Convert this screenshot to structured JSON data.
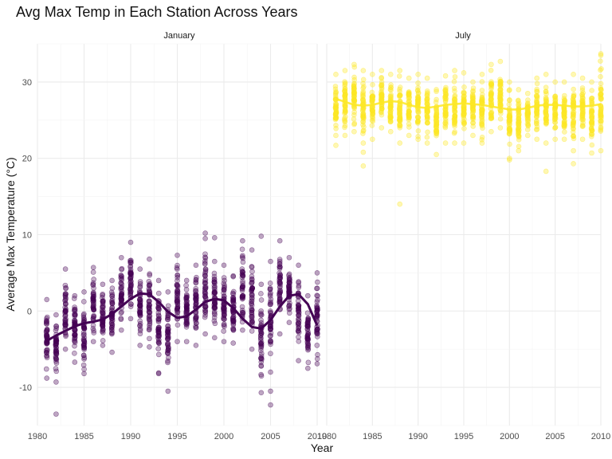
{
  "chart_data": {
    "type": "scatter",
    "title": "Avg Max Temp in Each Station Across Years",
    "xlabel": "Year",
    "ylabel": "Average Max Temperature (°C)",
    "xlim": [
      1980,
      2010
    ],
    "ylim": [
      -15,
      35
    ],
    "x_ticks": [
      1980,
      1985,
      1990,
      1995,
      2000,
      2005,
      2010
    ],
    "y_ticks": [
      -10,
      0,
      10,
      20,
      30
    ],
    "grid": true,
    "legend": "none",
    "facets": [
      {
        "label": "January",
        "color": "#440154",
        "smooth": [
          [
            1981,
            -3.9
          ],
          [
            1982,
            -3.2
          ],
          [
            1983,
            -2.6
          ],
          [
            1984,
            -2.0
          ],
          [
            1985,
            -1.6
          ],
          [
            1986,
            -1.4
          ],
          [
            1987,
            -1.1
          ],
          [
            1988,
            -0.4
          ],
          [
            1989,
            0.6
          ],
          [
            1990,
            1.6
          ],
          [
            1991,
            2.3
          ],
          [
            1992,
            2.2
          ],
          [
            1993,
            1.2
          ],
          [
            1994,
            -0.1
          ],
          [
            1995,
            -0.9
          ],
          [
            1996,
            -0.7
          ],
          [
            1997,
            0.2
          ],
          [
            1998,
            1.2
          ],
          [
            1999,
            1.6
          ],
          [
            2000,
            1.4
          ],
          [
            2001,
            0.4
          ],
          [
            2002,
            -1.0
          ],
          [
            2003,
            -2.1
          ],
          [
            2004,
            -2.3
          ],
          [
            2005,
            -1.2
          ],
          [
            2006,
            0.6
          ],
          [
            2007,
            2.0
          ],
          [
            2008,
            2.2
          ],
          [
            2009,
            0.9
          ],
          [
            2010,
            -1.9
          ]
        ],
        "year_ranges": [
          [
            1981,
            -8.8,
            1.5
          ],
          [
            1982,
            -9.3,
            -0.5
          ],
          [
            1983,
            -5.0,
            5.5
          ],
          [
            1984,
            -6.7,
            2.0
          ],
          [
            1985,
            -8.2,
            2.5
          ],
          [
            1986,
            -4.0,
            5.7
          ],
          [
            1987,
            -4.5,
            3.5
          ],
          [
            1988,
            -5.4,
            4.0
          ],
          [
            1989,
            -2.5,
            7.0
          ],
          [
            1990,
            -1.0,
            9.0
          ],
          [
            1991,
            -4.5,
            5.5
          ],
          [
            1992,
            -4.7,
            6.8
          ],
          [
            1993,
            -8.1,
            4.0
          ],
          [
            1994,
            -10.5,
            2.5
          ],
          [
            1995,
            -4.0,
            7.3
          ],
          [
            1996,
            -4.0,
            4.0
          ],
          [
            1997,
            -4.5,
            6.0
          ],
          [
            1998,
            -3.0,
            9.5
          ],
          [
            1999,
            -3.5,
            6.5
          ],
          [
            2000,
            -4.0,
            6.0
          ],
          [
            2001,
            -4.2,
            4.5
          ],
          [
            2002,
            -2.5,
            9.2
          ],
          [
            2003,
            -5.0,
            8.0
          ],
          [
            2004,
            -10.7,
            3.5
          ],
          [
            2005,
            -8.0,
            6.5
          ],
          [
            2006,
            -3.0,
            9.2
          ],
          [
            2007,
            -1.5,
            7.0
          ],
          [
            2008,
            -6.5,
            6.0
          ],
          [
            2009,
            -7.5,
            2.0
          ],
          [
            2010,
            -6.9,
            5.0
          ]
        ],
        "outliers": [
          [
            1982,
            -13.5
          ],
          [
            1998,
            10.2
          ],
          [
            1999,
            9.6
          ],
          [
            2004,
            9.8
          ],
          [
            2005,
            -12.3
          ],
          [
            2005,
            -10.5
          ],
          [
            2003,
            4.2
          ],
          [
            1993,
            -8.2
          ],
          [
            2001,
            4.6
          ]
        ]
      },
      {
        "label": "July",
        "color": "#FDE725",
        "smooth": [
          [
            1981,
            27.8
          ],
          [
            1982,
            27.4
          ],
          [
            1983,
            27.0
          ],
          [
            1984,
            26.9
          ],
          [
            1985,
            27.0
          ],
          [
            1986,
            27.3
          ],
          [
            1987,
            27.5
          ],
          [
            1988,
            27.4
          ],
          [
            1989,
            27.0
          ],
          [
            1990,
            26.7
          ],
          [
            1991,
            26.6
          ],
          [
            1992,
            26.8
          ],
          [
            1993,
            27.0
          ],
          [
            1994,
            27.1
          ],
          [
            1995,
            27.2
          ],
          [
            1996,
            27.1
          ],
          [
            1997,
            27.0
          ],
          [
            1998,
            26.8
          ],
          [
            1999,
            26.6
          ],
          [
            2000,
            26.4
          ],
          [
            2001,
            26.4
          ],
          [
            2002,
            26.6
          ],
          [
            2003,
            26.9
          ],
          [
            2004,
            27.0
          ],
          [
            2005,
            27.0
          ],
          [
            2006,
            26.9
          ],
          [
            2007,
            26.8
          ],
          [
            2008,
            26.8
          ],
          [
            2009,
            26.9
          ],
          [
            2010,
            27.1
          ]
        ],
        "year_ranges": [
          [
            1981,
            23.0,
            31.0
          ],
          [
            1982,
            23.0,
            31.5
          ],
          [
            1983,
            23.5,
            32.3
          ],
          [
            1984,
            22.0,
            31.5
          ],
          [
            1985,
            22.5,
            31.0
          ],
          [
            1986,
            24.0,
            31.5
          ],
          [
            1987,
            23.5,
            31.0
          ],
          [
            1988,
            22.0,
            31.5
          ],
          [
            1989,
            23.0,
            30.5
          ],
          [
            1990,
            22.5,
            31.0
          ],
          [
            1991,
            22.0,
            30.5
          ],
          [
            1992,
            20.5,
            29.0
          ],
          [
            1993,
            22.0,
            30.8
          ],
          [
            1994,
            22.0,
            31.5
          ],
          [
            1995,
            22.0,
            31.2
          ],
          [
            1996,
            23.0,
            30.0
          ],
          [
            1997,
            22.0,
            31.0
          ],
          [
            1998,
            23.5,
            32.3
          ],
          [
            1999,
            24.0,
            32.7
          ],
          [
            2000,
            20.0,
            30.0
          ],
          [
            2001,
            21.0,
            29.0
          ],
          [
            2002,
            23.0,
            28.5
          ],
          [
            2003,
            22.5,
            30.5
          ],
          [
            2004,
            22.0,
            31.0
          ],
          [
            2005,
            22.5,
            30.0
          ],
          [
            2006,
            22.5,
            30.0
          ],
          [
            2007,
            21.0,
            31.0
          ],
          [
            2008,
            22.5,
            30.5
          ],
          [
            2009,
            20.7,
            30.0
          ],
          [
            2010,
            21.0,
            33.5
          ]
        ],
        "outliers": [
          [
            1981,
            21.7
          ],
          [
            1984,
            19.0
          ],
          [
            1988,
            14.0
          ],
          [
            2004,
            18.3
          ],
          [
            2007,
            19.3
          ],
          [
            2000,
            19.8
          ],
          [
            2010,
            33.7
          ],
          [
            1984,
            20.8
          ]
        ]
      }
    ]
  }
}
